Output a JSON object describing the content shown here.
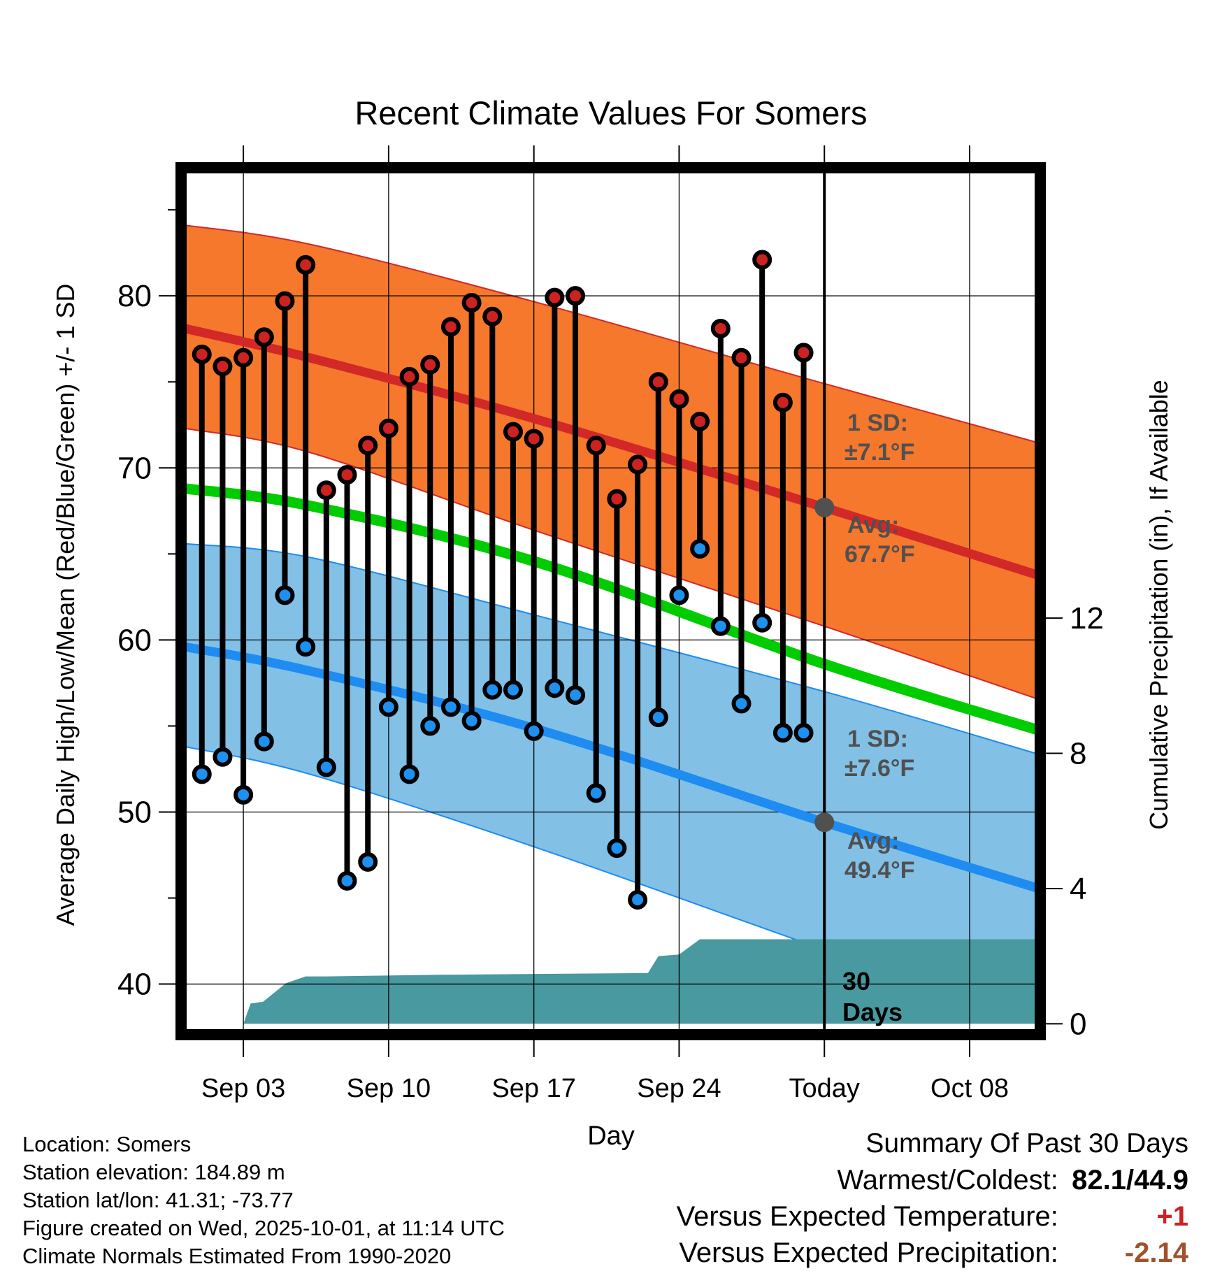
{
  "title": "Recent Climate Values For Somers",
  "y_left_label": "Average Daily High/Low/Mean (Red/Blue/Green) +/- 1 SD",
  "y_right_label": "Cumulative Precipitation (in), If Available",
  "x_label": "Day",
  "colors": {
    "high_sd_band": "#f5782d",
    "high_avg_line": "#d22828",
    "low_sd_band": "#82c0e6",
    "low_avg_line": "#1e8cf0",
    "mean_line": "#00cc00",
    "precip_fill": "#4999a0",
    "high_marker": "#cc2222",
    "low_marker": "#1e90f0",
    "today_marker": "#505050",
    "annotation_text": "#505050",
    "temp_diff": "#cc2222",
    "precip_diff": "#a0522d"
  },
  "annotations": {
    "high_sd_label": "1 SD:",
    "high_sd_value": "±7.1°F",
    "high_avg_label": "Avg:",
    "high_avg_value": "67.7°F",
    "low_sd_label": "1 SD:",
    "low_sd_value": "±7.6°F",
    "low_avg_label": "Avg:",
    "low_avg_value": "49.4°F",
    "period_number": "30",
    "period_unit": "Days"
  },
  "footer": {
    "location": "Location: Somers",
    "elevation": "Station elevation: 184.89 m",
    "latlon": "Station lat/lon: 41.31; -73.77",
    "created": "Figure created on Wed, 2025-10-01, at 11:14 UTC",
    "normals": "Climate Normals Estimated From 1990-2020"
  },
  "summary": {
    "title": "Summary Of Past 30 Days",
    "warm_cold_label": "Warmest/Coldest:",
    "warm_cold_value": "82.1/44.9",
    "temp_label": "Versus Expected Temperature:",
    "temp_value": "+1",
    "precip_label": "Versus Expected Precipitation:",
    "precip_value": "-2.14"
  },
  "chart_data": {
    "type": "line",
    "x_unit": "days relative to Sep 03",
    "xlim": [
      -2.8,
      38.2
    ],
    "ylim": [
      37.3,
      87.2
    ],
    "y2lim": [
      -0.2,
      25.2
    ],
    "x_ticks": [
      {
        "x": 0,
        "label": "Sep 03"
      },
      {
        "x": 7,
        "label": "Sep 10"
      },
      {
        "x": 14,
        "label": "Sep 17"
      },
      {
        "x": 21,
        "label": "Sep 24"
      },
      {
        "x": 28,
        "label": "Today"
      },
      {
        "x": 35,
        "label": "Oct 08"
      }
    ],
    "y_ticks": [
      40,
      50,
      60,
      70,
      80
    ],
    "y_minor_ticks": [
      45,
      55,
      65,
      75,
      85
    ],
    "y2_ticks": [
      0,
      4,
      8,
      12
    ],
    "today_x": 28,
    "normals": {
      "x": [
        -2.8,
        3.2,
        14.2,
        28,
        38.2
      ],
      "high_avg": [
        78.1,
        76.4,
        72.8,
        67.7,
        63.8
      ],
      "high_upper": [
        84.1,
        83.0,
        79.6,
        74.9,
        71.5
      ],
      "high_lower": [
        72.3,
        70.9,
        66.3,
        60.8,
        56.6
      ],
      "mean": [
        68.8,
        67.8,
        64.5,
        58.6,
        54.8
      ],
      "low_avg": [
        59.6,
        58.2,
        54.8,
        49.4,
        45.6
      ],
      "low_upper": [
        65.6,
        64.8,
        61.4,
        57.0,
        53.4
      ],
      "low_lower": [
        53.8,
        52.2,
        47.9,
        42.0,
        37.8
      ]
    },
    "observed": {
      "x": [
        -2,
        -1,
        0,
        1,
        2,
        3,
        4,
        5,
        6,
        7,
        8,
        9,
        10,
        11,
        12,
        13,
        14,
        15,
        16,
        17,
        18,
        19,
        20,
        21,
        22,
        23,
        24,
        25,
        26,
        27
      ],
      "high": [
        76.6,
        75.9,
        76.4,
        77.6,
        79.7,
        81.8,
        68.7,
        69.6,
        71.3,
        72.3,
        75.3,
        76.0,
        78.2,
        79.6,
        78.8,
        72.1,
        71.7,
        79.9,
        80.0,
        71.3,
        68.2,
        70.2,
        75.0,
        74.0,
        72.7,
        78.1,
        76.4,
        82.1,
        73.8,
        76.7
      ],
      "low": [
        52.2,
        53.2,
        51.0,
        54.1,
        62.6,
        59.6,
        52.6,
        46.0,
        47.1,
        56.1,
        52.2,
        55.0,
        56.1,
        55.3,
        57.1,
        57.1,
        54.7,
        57.2,
        56.8,
        51.1,
        47.9,
        44.9,
        55.5,
        62.6,
        65.3,
        60.8,
        56.3,
        61.0,
        54.6,
        54.6
      ]
    },
    "cumulative_precip": {
      "x": [
        0,
        0.35,
        0.95,
        2.05,
        3.0,
        4.0,
        9.5,
        19.5,
        20.0,
        21.0,
        22.0,
        38.2
      ],
      "y": [
        0,
        0.6,
        0.65,
        1.2,
        1.4,
        1.4,
        1.45,
        1.5,
        2.0,
        2.05,
        2.5,
        2.5
      ]
    }
  }
}
